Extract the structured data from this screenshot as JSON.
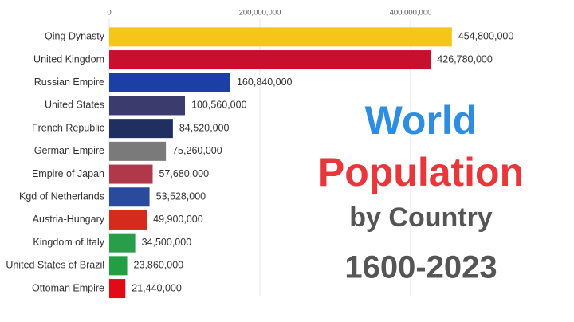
{
  "chart_data": {
    "type": "bar",
    "orientation": "horizontal",
    "title_lines": [
      "World",
      "Population",
      "by Country",
      "1600-2023"
    ],
    "title_colors": [
      "#2e8de0",
      "#e8373a",
      "#555555",
      "#555555"
    ],
    "categories": [
      "Qing Dynasty",
      "United Kingdom",
      "Russian Empire",
      "United States",
      "French Republic",
      "German Empire",
      "Empire of Japan",
      "Kgd of Netherlands",
      "Austria-Hungary",
      "Kingdom of Italy",
      "United States of Brazil",
      "Ottoman Empire"
    ],
    "values": [
      454800000,
      426780000,
      160840000,
      100560000,
      84520000,
      75260000,
      57680000,
      53528000,
      49900000,
      34500000,
      23860000,
      21440000
    ],
    "value_labels": [
      "454,800,000",
      "426,780,000",
      "160,840,000",
      "100,560,000",
      "84,520,000",
      "75,260,000",
      "57,680,000",
      "53,528,000",
      "49,900,000",
      "34,500,000",
      "23,860,000",
      "21,440,000"
    ],
    "colors": [
      "#f5c518",
      "#c8102e",
      "#1c3fa6",
      "#3c3b6e",
      "#1f2f5f",
      "#7a7a7a",
      "#b0384a",
      "#2a4b9b",
      "#d52b1e",
      "#2a9d4a",
      "#229e45",
      "#e30a17"
    ],
    "xlim": [
      0,
      500000000
    ],
    "xticks": [
      0,
      {
        "value": 200000000,
        "label": "200,000,000"
      },
      {
        "value": 400000000,
        "label": "400,000,000"
      }
    ],
    "grid": true
  }
}
